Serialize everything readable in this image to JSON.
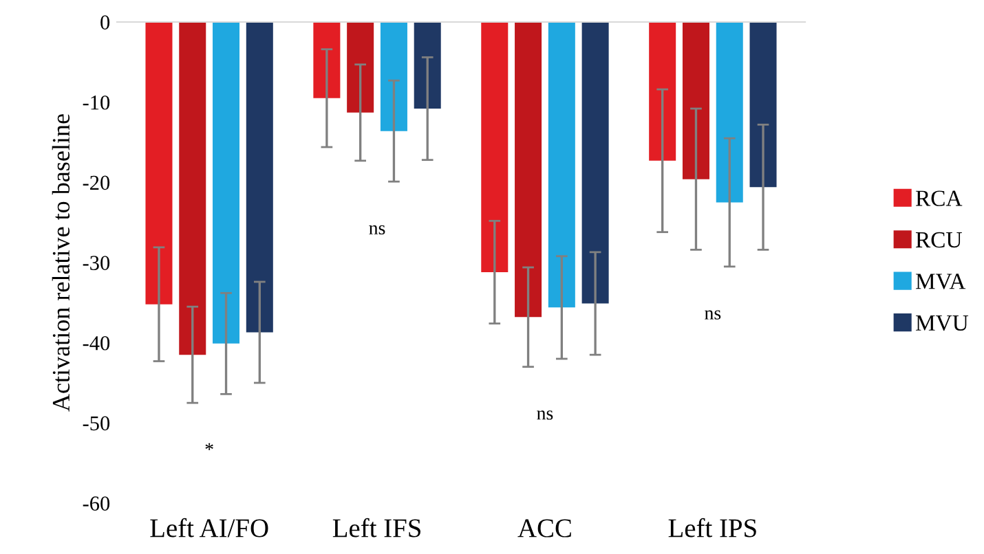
{
  "chart_data": {
    "type": "bar",
    "ylabel": "Activation relative to baseline",
    "categories": [
      "Left AI/FO",
      "Left IFS",
      "ACC",
      "Left IPS"
    ],
    "series": [
      {
        "name": "RCA",
        "color": "#e31e24",
        "values": [
          -35.2,
          -9.5,
          -31.2,
          -17.3
        ],
        "errors": [
          7.1,
          6.1,
          6.4,
          8.9
        ]
      },
      {
        "name": "RCU",
        "color": "#c0171c",
        "values": [
          -41.5,
          -11.3,
          -36.8,
          -19.6
        ],
        "errors": [
          6.0,
          6.0,
          6.2,
          8.8
        ]
      },
      {
        "name": "MVA",
        "color": "#1fa8e0",
        "values": [
          -40.1,
          -13.6,
          -35.6,
          -22.5
        ],
        "errors": [
          6.3,
          6.3,
          6.4,
          8.0
        ]
      },
      {
        "name": "MVU",
        "color": "#1f3864",
        "values": [
          -38.7,
          -10.8,
          -35.1,
          -20.6
        ],
        "errors": [
          6.3,
          6.4,
          6.4,
          7.8
        ]
      }
    ],
    "ylim": [
      -60,
      0
    ],
    "yticks": [
      -60,
      -50,
      -40,
      -30,
      -20,
      -10,
      0
    ],
    "annotations": [
      "*",
      "ns",
      "ns",
      "ns"
    ],
    "grid": false,
    "legend": "right"
  }
}
